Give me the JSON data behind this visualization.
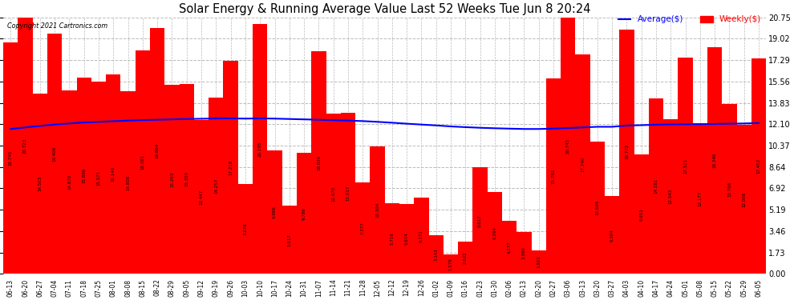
{
  "title": "Solar Energy & Running Average Value Last 52 Weeks Tue Jun 8 20:24",
  "copyright": "Copyright 2021 Cartronics.com",
  "bar_color": "#FF0000",
  "avg_line_color": "#0000FF",
  "background_color": "#FFFFFF",
  "grid_color": "#BBBBBB",
  "yticks": [
    0.0,
    1.73,
    3.46,
    5.19,
    6.92,
    8.64,
    10.37,
    12.1,
    13.83,
    15.56,
    17.29,
    19.02,
    20.75
  ],
  "categories": [
    "06-13",
    "06-20",
    "06-27",
    "07-04",
    "07-11",
    "07-18",
    "07-25",
    "08-01",
    "08-08",
    "08-15",
    "08-22",
    "08-29",
    "09-05",
    "09-12",
    "09-19",
    "09-26",
    "10-03",
    "10-10",
    "10-17",
    "10-24",
    "10-31",
    "11-07",
    "11-14",
    "11-21",
    "11-28",
    "12-05",
    "12-12",
    "12-19",
    "12-26",
    "01-02",
    "01-09",
    "01-16",
    "01-23",
    "01-30",
    "02-06",
    "02-13",
    "02-20",
    "02-27",
    "03-06",
    "03-13",
    "03-20",
    "03-27",
    "04-03",
    "04-10",
    "04-17",
    "04-24",
    "05-01",
    "05-08",
    "05-15",
    "05-22",
    "05-29",
    "06-05"
  ],
  "weekly_values": [
    18.745,
    20.723,
    14.583,
    19.406,
    14.87,
    15.886,
    15.571,
    16.14,
    14.808,
    18.081,
    19.864,
    15.283,
    15.355,
    12.447,
    14.257,
    17.218,
    7.278,
    20.195,
    9.986,
    5.517,
    9.786,
    18.039,
    12.978,
    13.017,
    7.377,
    10.304,
    5.716,
    5.674,
    6.171,
    3.143,
    1.579,
    2.622,
    8.617,
    6.594,
    4.277,
    3.38,
    1.921,
    15.792,
    20.745,
    17.74,
    10.695,
    6.304,
    19.772,
    9.651,
    14.181,
    12.543,
    17.521,
    12.177,
    18.346,
    13.766,
    12.088,
    17.452
  ],
  "avg_values": [
    11.72,
    11.85,
    11.97,
    12.08,
    12.17,
    12.25,
    12.3,
    12.35,
    12.4,
    12.44,
    12.47,
    12.5,
    12.53,
    12.55,
    12.57,
    12.58,
    12.56,
    12.58,
    12.56,
    12.53,
    12.5,
    12.47,
    12.43,
    12.4,
    12.36,
    12.3,
    12.23,
    12.15,
    12.08,
    12.01,
    11.93,
    11.87,
    11.82,
    11.78,
    11.75,
    11.72,
    11.72,
    11.75,
    11.8,
    11.85,
    11.9,
    11.9,
    12.0,
    12.03,
    12.07,
    12.09,
    12.1,
    12.11,
    12.13,
    12.15,
    12.17,
    12.2
  ],
  "legend_avg_label": "Average($)",
  "legend_weekly_label": "Weekly($)",
  "ymax": 20.75,
  "ymin": 0.0
}
